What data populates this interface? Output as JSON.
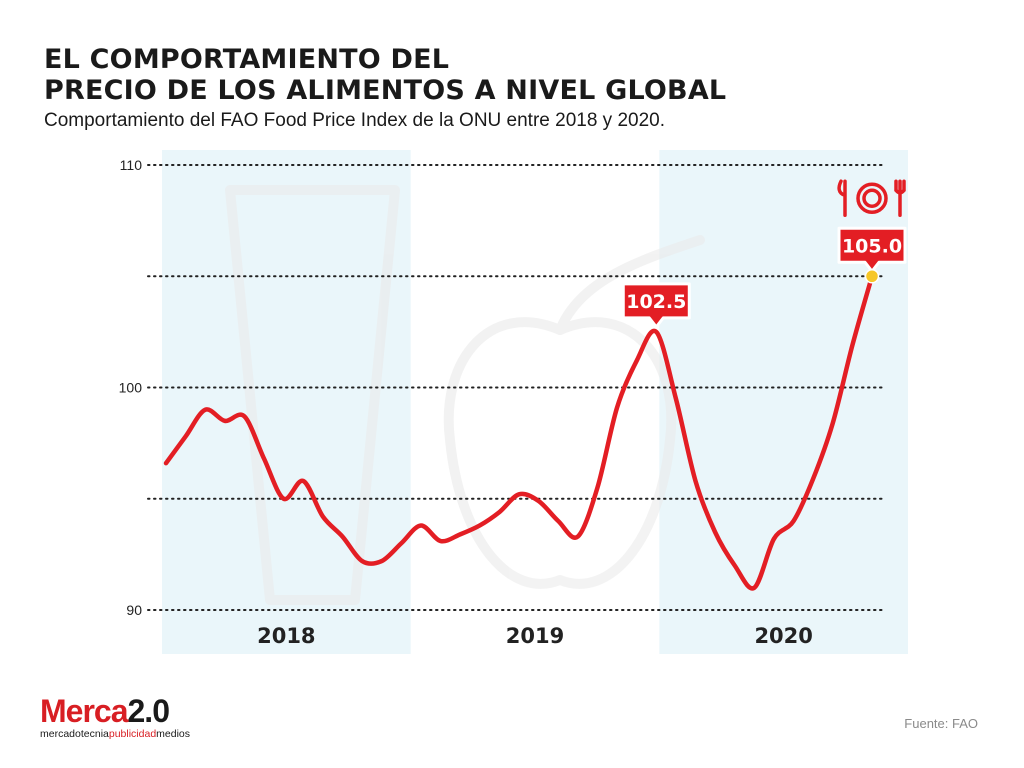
{
  "header": {
    "title_line1": "EL COMPORTAMIENTO DEL",
    "title_line2": "PRECIO DE LOS ALIMENTOS A NIVEL GLOBAL",
    "subtitle": "Comportamiento del FAO Food Price Index de la ONU entre 2018 y 2020."
  },
  "footer": {
    "brand_main_red": "Merca",
    "brand_main_dark": "2.0",
    "brand_tag_part1": "mercadotecnia",
    "brand_tag_part2": "publicidad",
    "brand_tag_part3": "medios",
    "source": "Fuente: FAO"
  },
  "colors": {
    "line": "#e31e24",
    "highlight_band": "#eaf6fa",
    "marker": "#f6c728",
    "grid": "#222222"
  },
  "chart_data": {
    "type": "line",
    "title": "",
    "xlabel": "",
    "ylabel": "",
    "ylim": [
      90,
      110
    ],
    "y_ticks": [
      90,
      100,
      110
    ],
    "gridlines": [
      90,
      95,
      100,
      105,
      110
    ],
    "years": [
      "2018",
      "2019",
      "2020"
    ],
    "series": [
      {
        "values": [
          96.6,
          97.8,
          99.0,
          98.5,
          98.7,
          96.8,
          95.0,
          95.8,
          94.2,
          93.3,
          92.2,
          92.2,
          93.0,
          93.8,
          93.1,
          93.4,
          93.8,
          94.4,
          95.2,
          94.9,
          94.0,
          93.3,
          95.5,
          99.1,
          101.2,
          102.5,
          99.5,
          95.8,
          93.5,
          92.0,
          91.0,
          93.2,
          94.0,
          95.9,
          98.4,
          101.9,
          105.0
        ]
      }
    ],
    "annotations": [
      {
        "label": "102.5",
        "point_index": 25
      },
      {
        "label": "105.0",
        "point_index": 36,
        "icon": "plate-cutlery-icon"
      }
    ]
  }
}
